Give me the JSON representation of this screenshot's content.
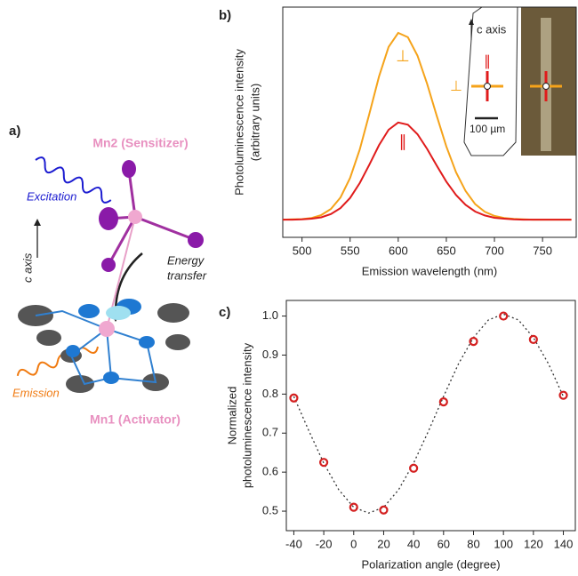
{
  "panel_labels": [
    "a)",
    "b)",
    "c)"
  ],
  "panel_a": {
    "mn2": "Mn2 (Sensitizer)",
    "excitation": "Excitation",
    "c_axis": "c axis",
    "energy_transfer": [
      "Energy",
      "transfer"
    ],
    "emission": "Emission",
    "mn1": "Mn1 (Activator)"
  },
  "inset": {
    "c_axis": "c axis",
    "scale_bar": "100 µm"
  },
  "chart_data": [
    {
      "type": "line",
      "xlabel": "Emission wavelength (nm)",
      "ylabel": [
        "Photoluminescence intensity",
        "(arbitrary units)"
      ],
      "x": [
        480,
        490,
        500,
        510,
        520,
        530,
        540,
        550,
        560,
        570,
        580,
        590,
        600,
        610,
        620,
        630,
        640,
        650,
        660,
        670,
        680,
        690,
        700,
        710,
        720,
        730,
        740,
        750,
        760,
        770,
        780
      ],
      "series": [
        {
          "name": "⊥",
          "color": "#f5a31a",
          "values": [
            0.077,
            0.078,
            0.079,
            0.084,
            0.097,
            0.123,
            0.173,
            0.258,
            0.382,
            0.537,
            0.698,
            0.827,
            0.888,
            0.869,
            0.789,
            0.667,
            0.528,
            0.395,
            0.283,
            0.201,
            0.144,
            0.111,
            0.093,
            0.084,
            0.08,
            0.078,
            0.077,
            0.077,
            0.077,
            0.077,
            0.077
          ]
        },
        {
          "name": "∥",
          "color": "#e01b1b",
          "values": [
            0.077,
            0.077,
            0.078,
            0.081,
            0.087,
            0.101,
            0.127,
            0.171,
            0.236,
            0.316,
            0.4,
            0.467,
            0.499,
            0.489,
            0.448,
            0.384,
            0.312,
            0.242,
            0.184,
            0.141,
            0.112,
            0.095,
            0.085,
            0.081,
            0.078,
            0.077,
            0.077,
            0.077,
            0.077,
            0.077,
            0.077
          ]
        }
      ],
      "xlim": [
        480,
        785
      ],
      "xticks": [
        500,
        550,
        600,
        650,
        700,
        750
      ],
      "ylim": [
        0,
        1
      ]
    },
    {
      "type": "scatter",
      "xlabel": "Polarization angle (degree)",
      "ylabel": [
        "Normalized",
        "photoluminescence intensity"
      ],
      "x": [
        -40,
        -20,
        0,
        20,
        40,
        60,
        80,
        100,
        120,
        140
      ],
      "values": [
        0.79,
        0.625,
        0.51,
        0.503,
        0.61,
        0.78,
        0.935,
        1.0,
        0.94,
        0.797
      ],
      "color": "#d42020",
      "fit": {
        "x": [
          -40,
          -30,
          -20,
          -10,
          0,
          10,
          20,
          30,
          40,
          50,
          60,
          70,
          80,
          90,
          100,
          110,
          120,
          130,
          140
        ],
        "values": [
          0.794,
          0.706,
          0.623,
          0.555,
          0.51,
          0.495,
          0.51,
          0.555,
          0.623,
          0.706,
          0.794,
          0.878,
          0.945,
          0.99,
          1.005,
          0.99,
          0.945,
          0.878,
          0.794
        ],
        "color": "#333"
      },
      "xlim": [
        -45,
        148
      ],
      "xticks": [
        -40,
        -20,
        0,
        20,
        40,
        60,
        80,
        100,
        120,
        140
      ],
      "ylim": [
        0.45,
        1.04
      ],
      "yticks": [
        0.5,
        0.6,
        0.7,
        0.8,
        0.9,
        {
          "value": 1,
          "label": "1.0"
        }
      ]
    }
  ]
}
